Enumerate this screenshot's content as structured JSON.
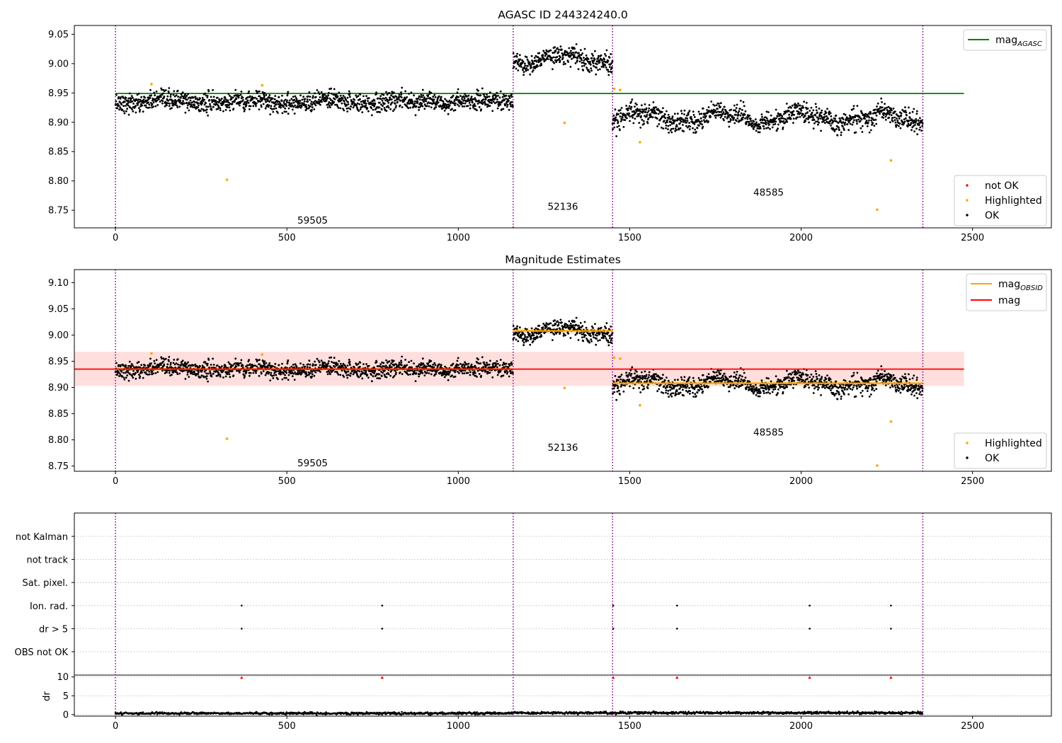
{
  "colors": {
    "ok": "#000000",
    "highlighted": "#ffa500",
    "not_ok": "#ff0000",
    "agasc_line": "#008000",
    "obs_line": "#ffa500",
    "mag_line": "#ff0000",
    "mag_band": "#ffcccc",
    "obs_band": "#ffe4c0",
    "vline": "#800080"
  },
  "chart_data": [
    {
      "type": "scatter",
      "title": "AGASC ID 244324240.0",
      "xlim": [
        -120,
        2730
      ],
      "ylim": [
        8.72,
        9.065
      ],
      "xticks": [
        0,
        500,
        1000,
        1500,
        2000,
        2500
      ],
      "yticks": [
        8.75,
        8.8,
        8.85,
        8.9,
        8.95,
        9.0,
        9.05
      ],
      "obs_boundaries": [
        0,
        1160,
        1450,
        2355
      ],
      "segments": [
        {
          "obsid": "59505",
          "x_start": 0,
          "x_end": 1160,
          "mean": 8.935,
          "noise": 0.008,
          "wobble": 0.004
        },
        {
          "obsid": "52136",
          "x_start": 1160,
          "x_end": 1450,
          "mean": 9.008,
          "noise": 0.008,
          "wobble": 0.012
        },
        {
          "obsid": "48585",
          "x_start": 1450,
          "x_end": 2355,
          "mean": 8.908,
          "noise": 0.009,
          "wobble": 0.013
        }
      ],
      "annotations": [
        {
          "text": "59505",
          "x": 575,
          "y": 8.733
        },
        {
          "text": "52136",
          "x": 1305,
          "y": 8.757
        },
        {
          "text": "48585",
          "x": 1905,
          "y": 8.781
        }
      ],
      "lines": [
        {
          "name": "mag_AGASC",
          "y": 8.949,
          "x_start": 0,
          "x_end": 2475
        }
      ],
      "highlighted_points": [
        {
          "x": 105,
          "y": 8.965
        },
        {
          "x": 325,
          "y": 8.802
        },
        {
          "x": 428,
          "y": 8.963
        },
        {
          "x": 1310,
          "y": 8.899
        },
        {
          "x": 1455,
          "y": 8.957
        },
        {
          "x": 1472,
          "y": 8.955
        },
        {
          "x": 1530,
          "y": 8.866
        },
        {
          "x": 2222,
          "y": 8.751
        },
        {
          "x": 2262,
          "y": 8.835
        }
      ],
      "legend": {
        "position": "lower-right",
        "entries": [
          {
            "label": "not OK",
            "kind": "dot",
            "color": "#ff0000"
          },
          {
            "label": "Highlighted",
            "kind": "dot",
            "color": "#ffa500"
          },
          {
            "label": "OK",
            "kind": "dot",
            "color": "#000000"
          }
        ]
      },
      "legend_upper": {
        "position": "upper-right",
        "entries": [
          {
            "label": "mag",
            "sub": "AGASC",
            "kind": "line",
            "color": "#008000"
          }
        ]
      }
    },
    {
      "type": "scatter",
      "title": "Magnitude Estimates",
      "xlim": [
        -120,
        2730
      ],
      "ylim": [
        8.74,
        9.125
      ],
      "xticks": [
        0,
        500,
        1000,
        1500,
        2000,
        2500
      ],
      "yticks": [
        8.75,
        8.8,
        8.85,
        8.9,
        8.95,
        9.0,
        9.05,
        9.1
      ],
      "obs_boundaries": [
        0,
        1160,
        1450,
        2355
      ],
      "segments": [
        {
          "obsid": "59505",
          "x_start": 0,
          "x_end": 1160,
          "mean": 8.935,
          "noise": 0.008,
          "wobble": 0.004,
          "obs_mag": 8.935
        },
        {
          "obsid": "52136",
          "x_start": 1160,
          "x_end": 1450,
          "mean": 9.008,
          "noise": 0.008,
          "wobble": 0.012,
          "obs_mag": 9.008
        },
        {
          "obsid": "48585",
          "x_start": 1450,
          "x_end": 2355,
          "mean": 8.908,
          "noise": 0.009,
          "wobble": 0.013,
          "obs_mag": 8.908
        }
      ],
      "annotations": [
        {
          "text": "59505",
          "x": 575,
          "y": 8.756
        },
        {
          "text": "52136",
          "x": 1305,
          "y": 8.786
        },
        {
          "text": "48585",
          "x": 1905,
          "y": 8.815
        }
      ],
      "mag": {
        "y": 8.935,
        "band": [
          8.903,
          8.968
        ],
        "x_start": -120,
        "x_end": 2475
      },
      "highlighted_points": [
        {
          "x": 105,
          "y": 8.965
        },
        {
          "x": 325,
          "y": 8.802
        },
        {
          "x": 428,
          "y": 8.963
        },
        {
          "x": 1310,
          "y": 8.899
        },
        {
          "x": 1455,
          "y": 8.957
        },
        {
          "x": 1472,
          "y": 8.955
        },
        {
          "x": 1530,
          "y": 8.866
        },
        {
          "x": 2222,
          "y": 8.751
        },
        {
          "x": 2262,
          "y": 8.835
        }
      ],
      "legend": {
        "position": "lower-right",
        "entries": [
          {
            "label": "Highlighted",
            "kind": "dot",
            "color": "#ffa500"
          },
          {
            "label": "OK",
            "kind": "dot",
            "color": "#000000"
          }
        ]
      },
      "legend_upper": {
        "position": "upper-right",
        "entries": [
          {
            "label": "mag",
            "sub": "OBSID",
            "kind": "line",
            "color": "#ffa500"
          },
          {
            "label": "mag",
            "sub": "",
            "kind": "line",
            "color": "#ff0000"
          }
        ]
      }
    },
    {
      "type": "scatter",
      "title": "",
      "xlim": [
        -120,
        2730
      ],
      "xticks": [
        0,
        500,
        1000,
        1500,
        2000,
        2500
      ],
      "obs_boundaries": [
        0,
        1160,
        1450,
        2355
      ],
      "flags": [
        "not Kalman",
        "not track",
        "Sat. pixel.",
        "Ion. rad.",
        "dr > 5",
        "OBS not OK"
      ],
      "flag_points": [
        {
          "flag": "Ion. rad.",
          "x": [
            368,
            778,
            1452,
            1638,
            2025,
            2262
          ]
        },
        {
          "flag": "dr > 5",
          "x": [
            368,
            778,
            1452,
            1638,
            2025,
            2262
          ]
        }
      ],
      "dr": {
        "ylabel": "dr",
        "ylim": [
          -0.4,
          10.5
        ],
        "yticks": [
          0,
          5,
          10
        ],
        "level": 0.35,
        "outliers_x": [
          368,
          778,
          1452,
          1638,
          2025,
          2262
        ],
        "outlier_y": 9.8
      }
    }
  ]
}
